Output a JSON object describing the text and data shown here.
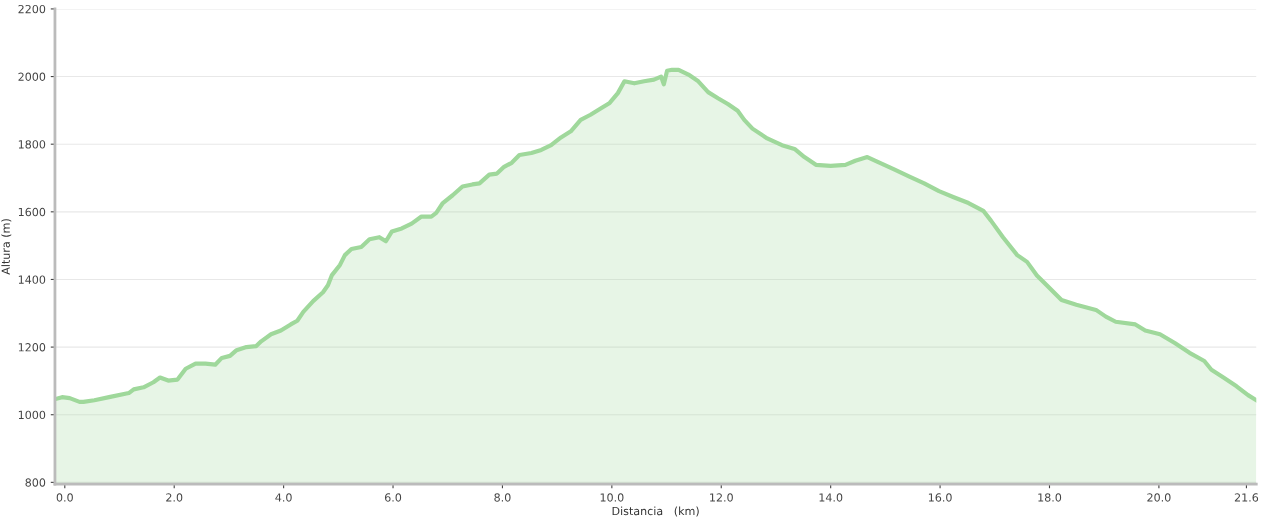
{
  "chart_data": {
    "type": "area",
    "xlabel": "Distancia   (km)",
    "ylabel": "Altura (m)",
    "series": [
      {
        "color": "#9fd89b",
        "x": [
          -0.18,
          -0.05,
          0.09,
          0.27,
          0.34,
          0.54,
          0.81,
          1.17,
          1.26,
          1.44,
          1.62,
          1.74,
          1.89,
          2.06,
          2.21,
          2.39,
          2.57,
          2.75,
          2.87,
          3.02,
          3.14,
          3.32,
          3.5,
          3.59,
          3.77,
          3.95,
          4.13,
          4.25,
          4.36,
          4.54,
          4.72,
          4.81,
          4.88,
          5.03,
          5.12,
          5.24,
          5.42,
          5.57,
          5.75,
          5.87,
          5.98,
          6.16,
          6.34,
          6.52,
          6.7,
          6.79,
          6.91,
          7.09,
          7.27,
          7.45,
          7.58,
          7.76,
          7.9,
          8.03,
          8.17,
          8.31,
          8.53,
          8.71,
          8.89,
          9.07,
          9.25,
          9.43,
          9.61,
          9.78,
          9.96,
          10.11,
          10.23,
          10.41,
          10.59,
          10.77,
          10.9,
          10.95,
          11.01,
          11.1,
          11.22,
          11.4,
          11.58,
          11.76,
          11.94,
          12.12,
          12.3,
          12.42,
          12.57,
          12.84,
          13.11,
          13.34,
          13.52,
          13.73,
          14.0,
          14.27,
          14.45,
          14.67,
          14.9,
          15.17,
          15.44,
          15.71,
          15.98,
          16.25,
          16.52,
          16.79,
          16.93,
          17.15,
          17.41,
          17.59,
          17.77,
          17.95,
          18.22,
          18.49,
          18.85,
          19.03,
          19.21,
          19.57,
          19.75,
          20.02,
          20.29,
          20.56,
          20.83,
          20.96,
          21.18,
          21.42,
          21.63,
          21.78
        ],
        "values": [
          1046,
          1052,
          1049,
          1038,
          1038,
          1043,
          1052,
          1064,
          1075,
          1081,
          1096,
          1110,
          1101,
          1104,
          1136,
          1151,
          1151,
          1148,
          1168,
          1174,
          1191,
          1200,
          1203,
          1217,
          1238,
          1249,
          1267,
          1278,
          1304,
          1336,
          1362,
          1383,
          1412,
          1443,
          1472,
          1490,
          1496,
          1519,
          1525,
          1513,
          1542,
          1551,
          1565,
          1586,
          1586,
          1597,
          1626,
          1649,
          1675,
          1681,
          1684,
          1710,
          1713,
          1733,
          1745,
          1768,
          1774,
          1783,
          1797,
          1820,
          1838,
          1872,
          1887,
          1904,
          1922,
          1951,
          1986,
          1980,
          1986,
          1991,
          2000,
          1977,
          2017,
          2020,
          2020,
          2006,
          1986,
          1954,
          1936,
          1919,
          1899,
          1872,
          1846,
          1817,
          1797,
          1786,
          1762,
          1739,
          1736,
          1739,
          1751,
          1762,
          1745,
          1725,
          1704,
          1684,
          1661,
          1643,
          1626,
          1603,
          1574,
          1525,
          1472,
          1452,
          1412,
          1383,
          1339,
          1325,
          1310,
          1290,
          1275,
          1267,
          1249,
          1238,
          1212,
          1183,
          1159,
          1133,
          1110,
          1084,
          1058,
          1043
        ]
      }
    ],
    "xlim": [
      -0.18,
      21.78
    ],
    "ylim": [
      795,
      2200
    ],
    "xticks": [
      {
        "value": 0,
        "label": "0.0"
      },
      {
        "value": 2,
        "label": "2.0"
      },
      {
        "value": 4,
        "label": "4.0"
      },
      {
        "value": 6,
        "label": "6.0"
      },
      {
        "value": 8,
        "label": "8.0"
      },
      {
        "value": 10,
        "label": "10.0"
      },
      {
        "value": 12,
        "label": "12.0"
      },
      {
        "value": 14,
        "label": "14.0"
      },
      {
        "value": 16,
        "label": "16.0"
      },
      {
        "value": 18,
        "label": "18.0"
      },
      {
        "value": 20,
        "label": "20.0"
      },
      {
        "value": 21.6,
        "label": "21.6"
      }
    ],
    "yticks": [
      800,
      1000,
      1200,
      1400,
      1600,
      1800,
      2000,
      2200
    ],
    "grid": "y",
    "legend": false
  }
}
